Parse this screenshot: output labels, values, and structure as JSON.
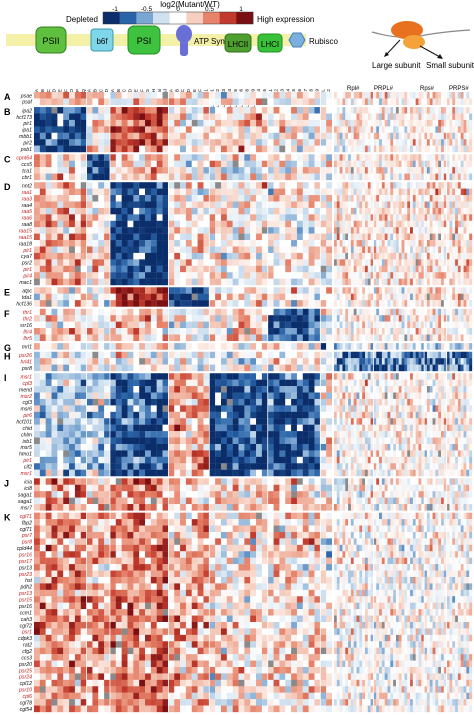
{
  "legend": {
    "depleted_label": "Depleted",
    "high_label": "High expression",
    "scale_title": "log2(Mutant/WT)",
    "ticks": [
      "-1",
      "-0.5",
      "0",
      "0.5",
      "1"
    ],
    "colors": [
      "#0b2e6b",
      "#2a64a8",
      "#7aa6d2",
      "#cfe0ef",
      "#ffffff",
      "#f6cfc0",
      "#e6836a",
      "#c23a2c",
      "#7a0f12"
    ]
  },
  "complexes": [
    {
      "label": "PSII",
      "color": "#5fbf3f"
    },
    {
      "label": "b6f",
      "color": "#7fd6e8"
    },
    {
      "label": "PSI",
      "color": "#3fc23f"
    },
    {
      "label": "ATP Synthase",
      "color": "#6a6fd8"
    },
    {
      "label": "LHCII",
      "color": "#4f9f2f"
    },
    {
      "label": "LHCI",
      "color": "#39c239"
    },
    {
      "label": "Rubisco",
      "color": "#7ab0e0"
    }
  ],
  "ribosome": {
    "large_label": "Large subunit",
    "small_label": "Small subunit",
    "rpl_label": "Rpl#",
    "prpl_label": "PRPL#",
    "rps_label": "Rps#",
    "prps_label": "PRPS#"
  },
  "chart_data": {
    "type": "heatmap",
    "value_range": [
      -1,
      1
    ],
    "color_scale_label": "log2(Mutant/WT)",
    "groups": [
      {
        "letter": "A",
        "rows": [
          "psae",
          "psaf"
        ]
      },
      {
        "letter": "B",
        "rows": [
          "ipa2",
          "hcf173",
          "pir1",
          "ipa1",
          "mbb1",
          "pir2",
          "psb1"
        ]
      },
      {
        "letter": "C",
        "rows": [
          "cpnt64",
          "ccs5",
          "tca1",
          "cbr1"
        ]
      },
      {
        "letter": "D",
        "rows": [
          "nnt2",
          "raa1",
          "raa3",
          "raa4",
          "raa5",
          "raa6",
          "raa8",
          "raa15",
          "raa15",
          "raa18",
          "pir1",
          "cya7",
          "psr2",
          "pir1",
          "pir4",
          "mac1"
        ]
      },
      {
        "letter": "E",
        "rows": [
          "atpc",
          "tda1",
          "hcf136"
        ]
      },
      {
        "letter": "F",
        "rows": [
          "thr1",
          "thr2",
          "srr16",
          "lhr4",
          "lhr5"
        ]
      },
      {
        "letter": "G",
        "rows": [
          "mrl1"
        ]
      },
      {
        "letter": "H",
        "rows": [
          "psr26",
          "hrl41",
          "psr8"
        ]
      },
      {
        "letter": "I",
        "rows": [
          "msr1",
          "cpl3",
          "mend",
          "msr2",
          "cgl3",
          "msr6",
          "pir6",
          "hcf101",
          "chid",
          "chlm",
          "ixb1",
          "msr5",
          "hmo1",
          "pir1",
          "cif2",
          "msr1"
        ]
      },
      {
        "letter": "J",
        "rows": [
          "icia",
          "ici8",
          "saga1",
          "saga1",
          "msr7"
        ]
      },
      {
        "letter": "K",
        "rows": [
          "cgl71",
          "fbp2",
          "cgl71",
          "psr7",
          "psr8",
          "cpld44",
          "psr16",
          "psr17",
          "psr13",
          "psr23",
          "hst",
          "pdh2",
          "psr13",
          "psr15",
          "psr16",
          "ccm1",
          "cah3",
          "cgl72",
          "psr1",
          "cdpk3",
          "rat2",
          "cfg2",
          "ccs3",
          "psr20",
          "psr25",
          "psr24",
          "cpl12",
          "psr10",
          "cpl6",
          "cgl78",
          "cgl54"
        ]
      }
    ],
    "column_blocks": [
      {
        "label": "PSII",
        "columns": [
          "PsbA",
          "PsbB",
          "PsbC",
          "PsbD",
          "PsbE",
          "PsbF",
          "PsbO",
          "PsbP",
          "PsbQ"
        ]
      },
      {
        "label": "b6f",
        "columns": [
          "PetA",
          "PetB",
          "PetC",
          "PetD"
        ]
      },
      {
        "label": "PSI",
        "columns": [
          "PsaA",
          "PsaB",
          "PsaC",
          "PsaD",
          "PsaE",
          "PsaF",
          "PsaG",
          "PsaH",
          "PsaI",
          "PsaJ"
        ]
      },
      {
        "label": "ATP Synthase",
        "columns": [
          "AtpA",
          "AtpB",
          "AtpC",
          "AtpD",
          "AtpE",
          "AtpF",
          "ATPG1"
        ]
      },
      {
        "label": "LHCII",
        "columns": [
          "LHCBM1",
          "LHCBM2",
          "LHCBM3",
          "LHCBM4",
          "LHCBM5",
          "LHCBM6",
          "LHCBM8",
          "LHCBM9",
          "LHCB4",
          "LHCB5"
        ]
      },
      {
        "label": "LHCI",
        "columns": [
          "LHCA1",
          "LHCA2",
          "LHCA3",
          "LHCA4",
          "LHCA5",
          "LHCA6",
          "LHCA7",
          "LHCA8",
          "LHCA9"
        ]
      },
      {
        "label": "Rubisco",
        "columns": [
          "RbcL",
          "RBCS2"
        ]
      }
    ],
    "ribosome_columns": {
      "Rpl#": 14,
      "PRPL#": 18,
      "Rps#": 8,
      "PRPS#": 9
    }
  }
}
